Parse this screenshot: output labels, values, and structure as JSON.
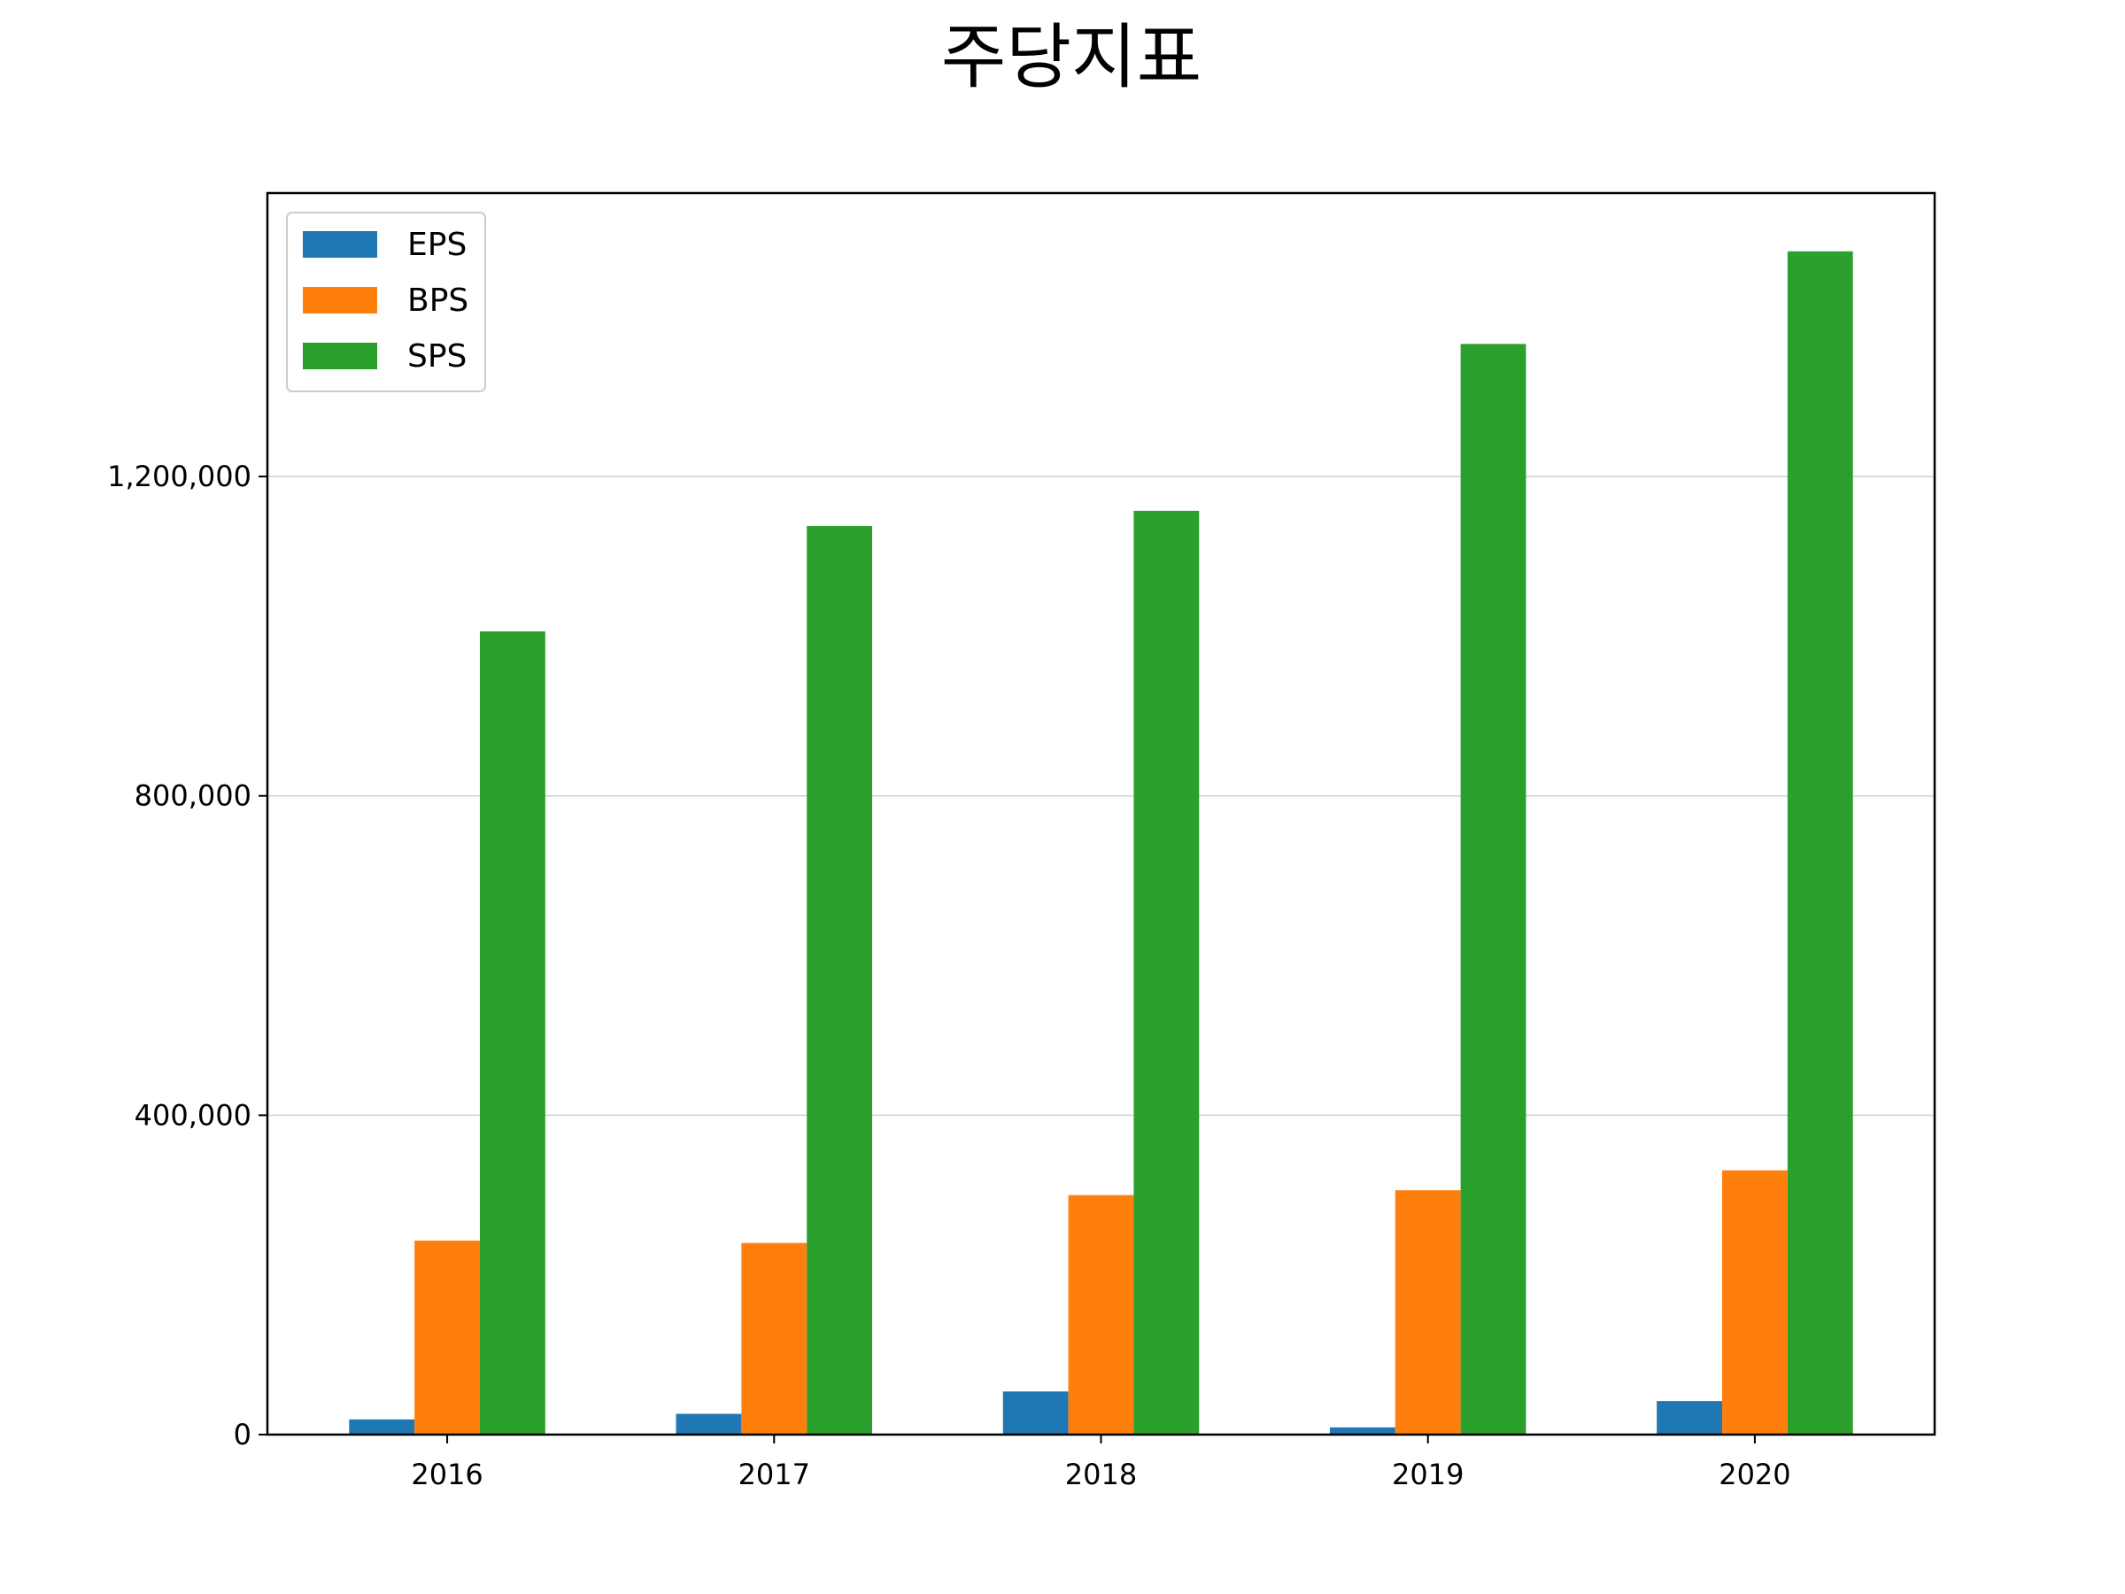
{
  "chart_data": {
    "type": "bar",
    "title": "주당지표",
    "xlabel": "",
    "ylabel": "",
    "categories": [
      "2016",
      "2017",
      "2018",
      "2019",
      "2020"
    ],
    "series": [
      {
        "name": "EPS",
        "color": "#1f77b4",
        "values": [
          19000,
          26000,
          54000,
          9000,
          42000
        ]
      },
      {
        "name": "BPS",
        "color": "#ff7f0e",
        "values": [
          243000,
          240000,
          300000,
          306000,
          331000
        ]
      },
      {
        "name": "SPS",
        "color": "#2ca02c",
        "values": [
          1006000,
          1138000,
          1157000,
          1366000,
          1482000
        ]
      }
    ],
    "ylim": [
      0,
      1555000
    ],
    "yticks": [
      0,
      400000,
      800000,
      1200000
    ],
    "ytick_labels": [
      "0",
      "400,000",
      "800,000",
      "1,200,000"
    ],
    "grid": "y",
    "legend_position": "top-left"
  }
}
